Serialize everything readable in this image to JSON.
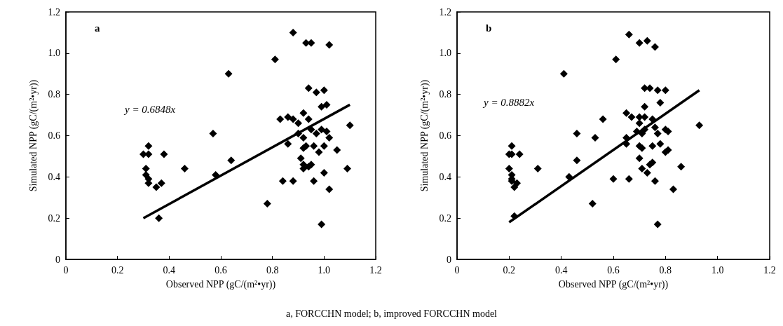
{
  "chart_data": [
    {
      "type": "scatter",
      "xlabel": "Observed NPP (gC/(m²•yr))",
      "ylabel": "Simulated NPP (gC/(m²•yr))",
      "xlim": [
        0,
        1.2
      ],
      "ylim": [
        0,
        1.2
      ],
      "xticks": [
        0,
        0.2,
        0.4,
        0.6,
        0.8,
        {
          "value": 1,
          "label": "1.0"
        },
        1.2
      ],
      "yticks": [
        0,
        0.2,
        0.4,
        0.6,
        0.8,
        {
          "value": 1,
          "label": "1.0"
        },
        1.2
      ],
      "marker": "diamond",
      "annotations": [
        "a",
        "y = 0.6848x",
        "a, FORCCHN model; b, improved FORCCHN model"
      ],
      "series": [
        {
          "color": "#000000",
          "x": [
            0.88,
            0.93,
            0.95,
            1.02,
            0.81,
            0.63,
            0.94,
            0.97,
            1.0,
            0.99,
            1.01,
            0.83,
            0.86,
            0.88,
            0.92,
            0.9,
            0.94,
            1.1,
            0.57,
            0.9,
            0.92,
            0.95,
            0.97,
            0.99,
            1.01,
            1.02,
            0.86,
            0.32,
            0.3,
            0.32,
            0.38,
            0.92,
            0.93,
            0.96,
            1.0,
            0.98,
            1.05,
            0.64,
            0.91,
            0.92,
            0.95,
            0.92,
            0.94,
            0.46,
            0.31,
            0.58,
            0.31,
            0.32,
            0.32,
            0.35,
            0.37,
            1.0,
            1.09,
            0.84,
            0.88,
            0.96,
            1.02,
            0.78,
            0.36,
            0.99
          ],
          "values": [
            1.1,
            1.05,
            1.05,
            1.04,
            0.97,
            0.9,
            0.83,
            0.81,
            0.82,
            0.74,
            0.75,
            0.68,
            0.69,
            0.68,
            0.71,
            0.66,
            0.68,
            0.65,
            0.61,
            0.61,
            0.59,
            0.63,
            0.61,
            0.63,
            0.62,
            0.59,
            0.56,
            0.55,
            0.51,
            0.51,
            0.51,
            0.54,
            0.55,
            0.55,
            0.55,
            0.52,
            0.53,
            0.48,
            0.49,
            0.46,
            0.46,
            0.44,
            0.45,
            0.44,
            0.44,
            0.41,
            0.41,
            0.39,
            0.37,
            0.35,
            0.37,
            0.42,
            0.44,
            0.38,
            0.38,
            0.38,
            0.34,
            0.27,
            0.2,
            0.17
          ]
        },
        {
          "type": "line",
          "color": "#000000",
          "marker": "none",
          "x": [
            0.3,
            1.1
          ],
          "values": [
            0.2,
            0.75
          ]
        }
      ]
    },
    {
      "type": "scatter",
      "xlabel": "Observed NPP (gC/(m²•yr))",
      "ylabel": "Simulated NPP (gC/(m²•yr))",
      "xlim": [
        0,
        1.2
      ],
      "ylim": [
        0,
        1.2
      ],
      "xticks": [
        0,
        0.2,
        0.4,
        0.6,
        0.8,
        {
          "value": 1,
          "label": "1.0"
        },
        1.2
      ],
      "yticks": [
        0,
        0.2,
        0.4,
        0.6,
        0.8,
        {
          "value": 1,
          "label": "1.0"
        },
        1.2
      ],
      "marker": "diamond",
      "annotations": [
        "b",
        "y = 0.8882x"
      ],
      "series": [
        {
          "color": "#000000",
          "x": [
            0.66,
            0.7,
            0.73,
            0.76,
            0.61,
            0.41,
            0.72,
            0.74,
            0.77,
            0.8,
            0.78,
            0.72,
            0.65,
            0.67,
            0.7,
            0.72,
            0.75,
            0.7,
            0.56,
            0.93,
            0.46,
            0.53,
            0.65,
            0.69,
            0.71,
            0.72,
            0.76,
            0.77,
            0.8,
            0.81,
            0.65,
            0.7,
            0.71,
            0.75,
            0.78,
            0.8,
            0.81,
            0.21,
            0.2,
            0.21,
            0.24,
            0.46,
            0.7,
            0.71,
            0.73,
            0.74,
            0.75,
            0.31,
            0.2,
            0.21,
            0.21,
            0.21,
            0.23,
            0.22,
            0.43,
            0.6,
            0.66,
            0.76,
            0.86,
            0.83,
            0.52,
            0.22,
            0.77
          ],
          "values": [
            1.09,
            1.05,
            1.06,
            1.03,
            0.97,
            0.9,
            0.83,
            0.83,
            0.82,
            0.82,
            0.76,
            0.74,
            0.71,
            0.69,
            0.69,
            0.69,
            0.68,
            0.66,
            0.68,
            0.65,
            0.61,
            0.59,
            0.59,
            0.62,
            0.61,
            0.63,
            0.64,
            0.61,
            0.63,
            0.62,
            0.56,
            0.55,
            0.54,
            0.55,
            0.56,
            0.52,
            0.53,
            0.55,
            0.51,
            0.51,
            0.51,
            0.48,
            0.49,
            0.44,
            0.42,
            0.46,
            0.47,
            0.44,
            0.44,
            0.41,
            0.39,
            0.38,
            0.37,
            0.35,
            0.4,
            0.39,
            0.39,
            0.38,
            0.45,
            0.34,
            0.27,
            0.21,
            0.17
          ]
        },
        {
          "type": "line",
          "color": "#000000",
          "marker": "none",
          "x": [
            0.2,
            0.93
          ],
          "values": [
            0.18,
            0.82
          ]
        }
      ]
    }
  ]
}
